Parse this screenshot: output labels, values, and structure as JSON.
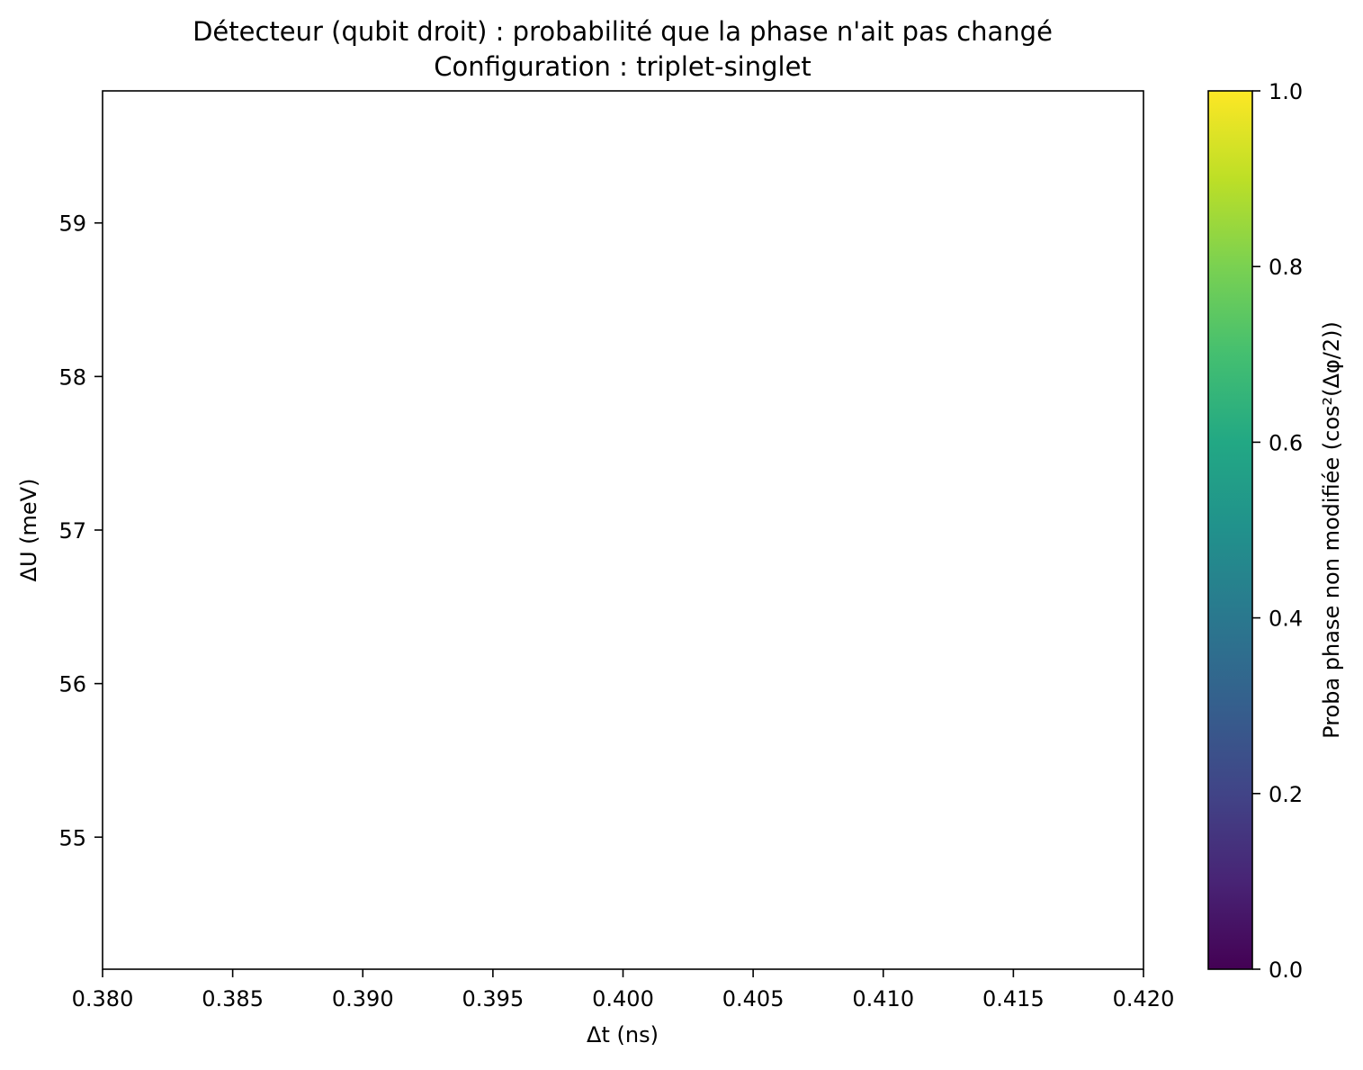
{
  "chart_data": {
    "type": "heatmap",
    "title": "Détecteur (qubit droit) : probabilité que la phase n'ait pas changé",
    "subtitle": "Configuration : triplet-singlet",
    "xlabel": "Δt (ns)",
    "ylabel": "ΔU (meV)",
    "xlim": [
      0.38,
      0.42
    ],
    "ylim": [
      54.14,
      59.86
    ],
    "x_ticks": [
      "0.380",
      "0.385",
      "0.390",
      "0.395",
      "0.400",
      "0.405",
      "0.410",
      "0.415",
      "0.420"
    ],
    "y_ticks": [
      "55",
      "56",
      "57",
      "58",
      "59"
    ],
    "values": [],
    "grid": false,
    "colorbar": {
      "label": "Proba phase non modifiée  (cos²(Δφ/2))",
      "colormap": "viridis",
      "range": [
        0.0,
        1.0
      ],
      "ticks": [
        "0.0",
        "0.2",
        "0.4",
        "0.6",
        "0.8",
        "1.0"
      ]
    }
  }
}
